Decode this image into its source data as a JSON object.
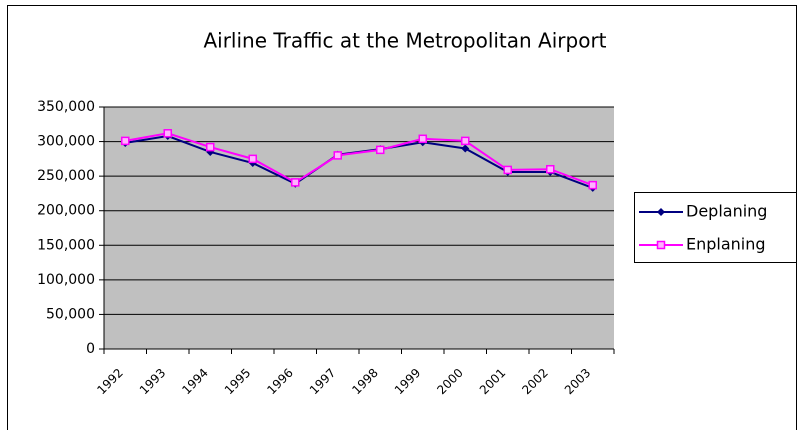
{
  "chart_data": {
    "type": "line",
    "title": "Airline Traffic at the Metropolitan Airport",
    "categories": [
      "1992",
      "1993",
      "1994",
      "1995",
      "1996",
      "1997",
      "1998",
      "1999",
      "2000",
      "2001",
      "2002",
      "2003"
    ],
    "series": [
      {
        "name": "Deplaning",
        "color": "#000080",
        "marker": "diamond",
        "values": [
          298000,
          308000,
          285000,
          269000,
          239000,
          281000,
          289000,
          299000,
          290000,
          256000,
          256000,
          233000
        ]
      },
      {
        "name": "Enplaning",
        "color": "#ff00ff",
        "marker": "square",
        "values": [
          301000,
          312000,
          292000,
          275000,
          241000,
          280000,
          288000,
          304000,
          301000,
          259000,
          260000,
          237000
        ]
      }
    ],
    "ylim": [
      0,
      350000
    ],
    "yticks": [
      0,
      {
        "value": 50000,
        "label": "50,000"
      },
      {
        "value": 100000,
        "label": "100,000"
      },
      {
        "value": 150000,
        "label": "150,000"
      },
      {
        "value": 200000,
        "label": "200,000"
      },
      {
        "value": 250000,
        "label": "250,000"
      },
      {
        "value": 300000,
        "label": "300,000"
      },
      {
        "value": 350000,
        "label": "350,000"
      }
    ],
    "grid": true,
    "legend": "right",
    "plot_background": "#c0c0c0"
  }
}
